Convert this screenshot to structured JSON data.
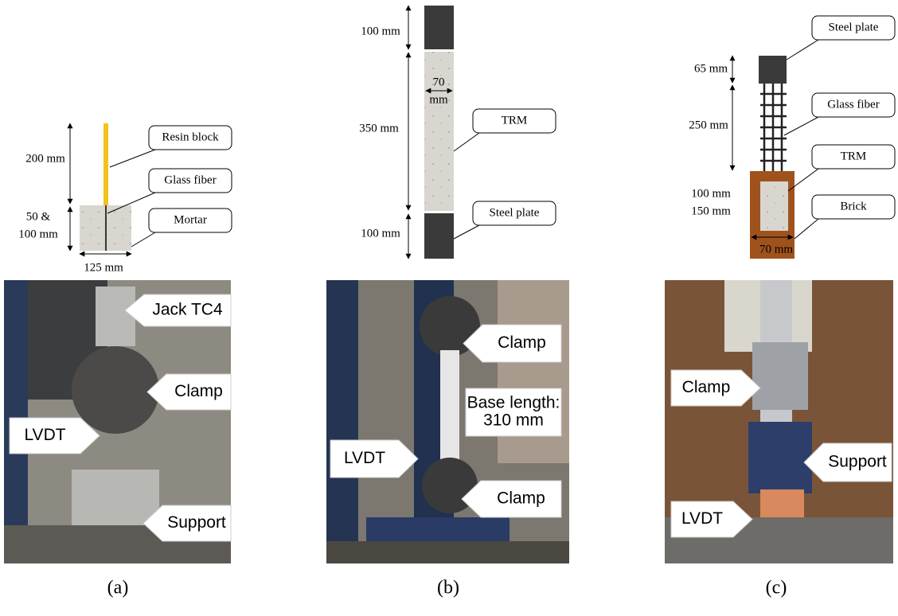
{
  "panels": [
    {
      "caption": "(a)",
      "diagram": {
        "dimensions": [
          [
            "200 mm"
          ],
          [
            "50 &",
            "100 mm"
          ],
          [
            "125 mm"
          ]
        ],
        "callouts": [
          "Resin block",
          "Glass fiber",
          "Mortar"
        ]
      },
      "photo": {
        "labels": [
          [
            "Jack TC4"
          ],
          [
            "Clamp"
          ],
          [
            "LVDT"
          ],
          [
            "Support"
          ]
        ]
      }
    },
    {
      "caption": "(b)",
      "diagram": {
        "dimensions": [
          [
            "100 mm"
          ],
          [
            "350 mm"
          ],
          [
            "70",
            "mm"
          ],
          [
            "100 mm"
          ]
        ],
        "callouts": [
          "TRM",
          "Steel plate"
        ]
      },
      "photo": {
        "labels": [
          [
            "Clamp"
          ],
          [
            "Base length:",
            "310 mm"
          ],
          [
            "LVDT"
          ],
          [
            "Clamp"
          ]
        ]
      }
    },
    {
      "caption": "(c)",
      "diagram": {
        "dimensions": [
          [
            "65 mm"
          ],
          [
            "250 mm"
          ],
          [
            "100 mm",
            "150 mm"
          ],
          [
            "70 mm"
          ]
        ],
        "callouts": [
          "Steel plate",
          "Glass fiber",
          "TRM",
          "Brick"
        ]
      },
      "photo": {
        "labels": [
          [
            "Clamp"
          ],
          [
            "Support"
          ],
          [
            "LVDT"
          ]
        ]
      }
    }
  ]
}
